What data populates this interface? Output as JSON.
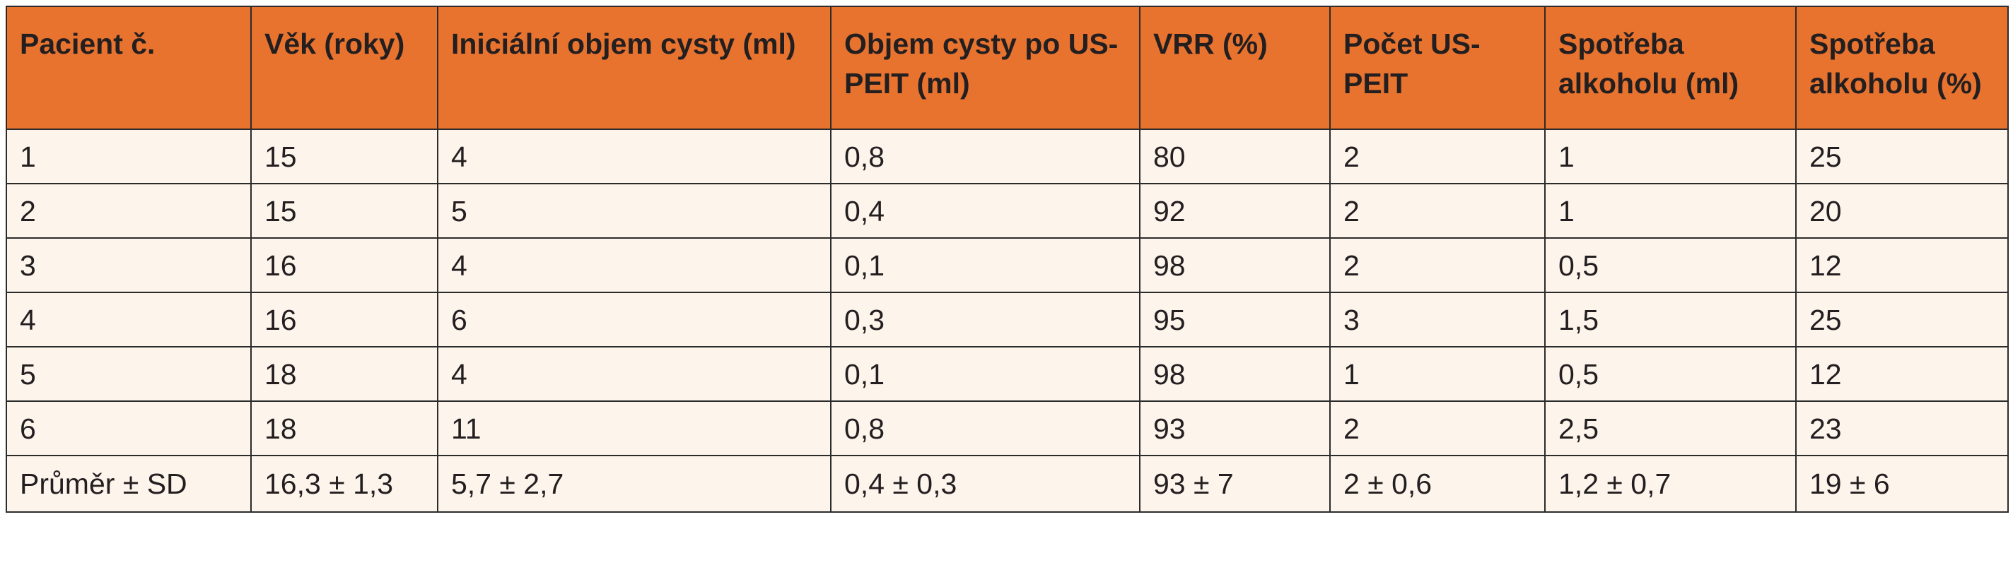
{
  "table": {
    "headers": [
      "Pacient č.",
      "Věk (roky)",
      "Iniciální objem cysty (ml)",
      "Objem cysty po US-PEIT (ml)",
      "VRR (%)",
      "Počet US-PEIT",
      "Spotřeba alkoholu (ml)",
      "Spotřeba alkoholu (%)"
    ],
    "rows": [
      [
        "1",
        "15",
        "4",
        "0,8",
        "80",
        "2",
        "1",
        "25"
      ],
      [
        "2",
        "15",
        "5",
        "0,4",
        "92",
        "2",
        "1",
        "20"
      ],
      [
        "3",
        "16",
        "4",
        "0,1",
        "98",
        "2",
        "0,5",
        "12"
      ],
      [
        "4",
        "16",
        "6",
        "0,3",
        "95",
        "3",
        "1,5",
        "25"
      ],
      [
        "5",
        "18",
        "4",
        "0,1",
        "98",
        "1",
        "0,5",
        "12"
      ],
      [
        "6",
        "18",
        "11",
        "0,8",
        "93",
        "2",
        "2,5",
        "23"
      ],
      [
        "Průměr ± SD",
        "16,3 ± 1,3",
        "5,7 ± 2,7",
        "0,4 ± 0,3",
        "93 ± 7",
        "2 ± 0,6",
        "1,2 ± 0,7",
        "19 ± 6"
      ]
    ]
  },
  "colors": {
    "header_bg": "#e8732f",
    "row_bg": "#fdf4ec",
    "border": "#2b2b2b",
    "text": "#231f20"
  }
}
